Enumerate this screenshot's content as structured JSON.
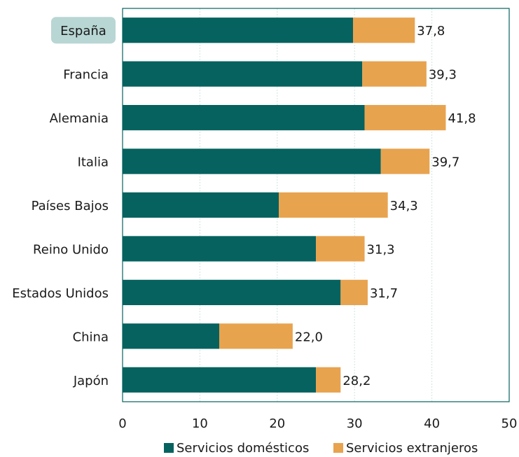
{
  "chart_data": {
    "type": "bar",
    "orientation": "horizontal",
    "stacked": true,
    "title": "",
    "xlabel": "",
    "ylabel": "",
    "categories": [
      "España",
      "Francia",
      "Alemania",
      "Italia",
      "Países Bajos",
      "Reino Unido",
      "Estados Unidos",
      "China",
      "Japón"
    ],
    "highlighted_category": "España",
    "series": [
      {
        "name": "Servicios domésticos",
        "color": "#05625f",
        "values": [
          29.8,
          31.0,
          31.3,
          33.4,
          20.2,
          25.0,
          28.2,
          12.5,
          25.0
        ]
      },
      {
        "name": "Servicios extranjeros",
        "color": "#e8a34f",
        "values": [
          8.0,
          8.3,
          10.5,
          6.3,
          14.1,
          6.3,
          3.5,
          9.5,
          3.2
        ]
      }
    ],
    "totals": [
      "37,8",
      "39,3",
      "41,8",
      "39,7",
      "34,3",
      "31,3",
      "31,7",
      "22,0",
      "28,2"
    ],
    "xlim": [
      0,
      50
    ],
    "xticks": [
      "0",
      "10",
      "20",
      "30",
      "40",
      "50"
    ],
    "xgrid": true,
    "legend_position": "bottom"
  }
}
